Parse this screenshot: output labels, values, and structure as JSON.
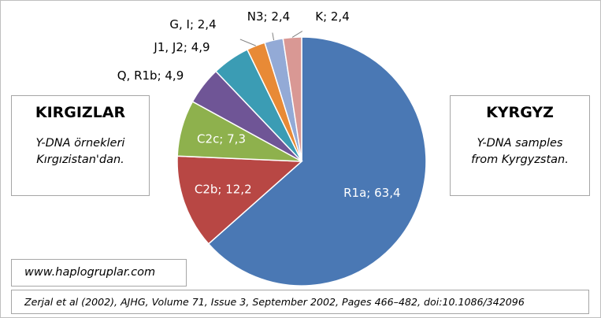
{
  "chart_data": {
    "type": "pie",
    "title": "",
    "slices": [
      {
        "label": "R1a",
        "value": 63.4,
        "text": "R1a; 63,4",
        "color": "#4a78b4"
      },
      {
        "label": "C2b",
        "value": 12.2,
        "text": "C2b; 12,2",
        "color": "#b84744"
      },
      {
        "label": "C2c",
        "value": 7.3,
        "text": "C2c; 7,3",
        "color": "#8eb14d"
      },
      {
        "label": "Q, R1b",
        "value": 4.9,
        "text": "Q, R1b; 4,9",
        "color": "#6f5596"
      },
      {
        "label": "J1, J2",
        "value": 4.9,
        "text": "J1, J2; 4,9",
        "color": "#3b9cb4"
      },
      {
        "label": "G, I",
        "value": 2.4,
        "text": "G, I; 2,4",
        "color": "#e88a36"
      },
      {
        "label": "N3",
        "value": 2.4,
        "text": "N3; 2,4",
        "color": "#93aad6"
      },
      {
        "label": "K",
        "value": 2.4,
        "text": "K; 2,4",
        "color": "#d99894"
      }
    ]
  },
  "left_box": {
    "title": "KIRGIZLAR",
    "line1": "Y-DNA örnekleri",
    "line2": "Kırgızistan'dan."
  },
  "right_box": {
    "title": "KYRGYZ",
    "line1": "Y-DNA samples",
    "line2": "from Kyrgyzstan."
  },
  "website": "www.haplogruplar.com",
  "citation": "Zerjal et al (2002), AJHG, Volume 71, Issue 3, September 2002, Pages 466–482, doi:10.1086/342096"
}
